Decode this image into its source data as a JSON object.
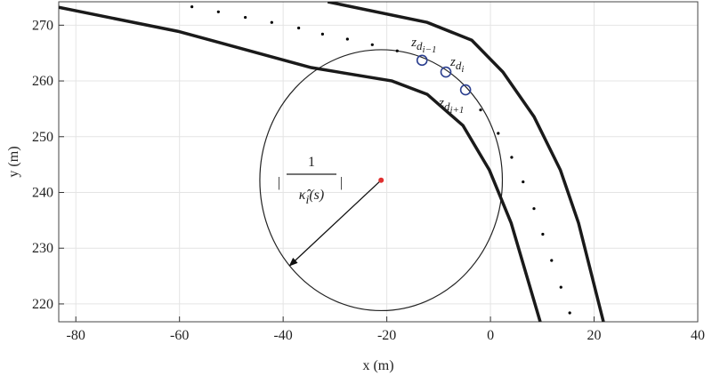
{
  "chart_data": {
    "type": "line",
    "xlabel": "x (m)",
    "ylabel": "y (m)",
    "xlim": [
      -83.3,
      40
    ],
    "ylim": [
      216.8,
      274.2
    ],
    "xticks": [
      -80,
      -60,
      -40,
      -20,
      0,
      20,
      40
    ],
    "yticks": [
      220,
      230,
      240,
      250,
      260,
      270
    ],
    "grid": true,
    "series": [
      {
        "color": "#1a1a1a",
        "style": "solid",
        "x": [
          -83.3,
          -60.3,
          -34.6,
          -19,
          -12.2,
          -5.3,
          -0.2,
          4,
          9.6
        ],
        "values": [
          273.2,
          268.9,
          262.4,
          260,
          257.6,
          252,
          244,
          234.5,
          216.8
        ]
      },
      {
        "color": "#1a1a1a",
        "style": "solid",
        "x": [
          -31.4,
          -12.2,
          -3.6,
          2.4,
          8.4,
          13.5,
          17,
          21.8
        ],
        "values": [
          274.2,
          270.5,
          267.3,
          261.6,
          253.6,
          244,
          234.5,
          216.8
        ]
      },
      {
        "color": "#000000",
        "style": "dots",
        "x": [
          -57.6,
          -52.5,
          -47.3,
          -42.2,
          -37.0,
          -32.4,
          -27.6,
          -22.8,
          -18.0,
          -1.9,
          1.5,
          4.1,
          6.3,
          8.4,
          10.1,
          11.8,
          13.6,
          15.3
        ],
        "values": [
          273.3,
          272.4,
          271.4,
          270.5,
          269.5,
          268.4,
          267.5,
          266.5,
          265.4,
          254.8,
          250.6,
          246.3,
          241.9,
          237.1,
          232.5,
          227.8,
          223.0,
          218.4
        ]
      },
      {
        "color": "#2b3f8f",
        "style": "rings",
        "x": [
          -13.2,
          -8.6,
          -4.8
        ],
        "values": [
          263.7,
          261.6,
          258.4
        ]
      }
    ],
    "circle": {
      "x": -21.1,
      "y": 242.2,
      "radius": 23.4,
      "center_color": "#e03030"
    },
    "annotations": [
      {
        "base": "z",
        "sub": "d",
        "subsub": "i−1"
      },
      {
        "base": "z",
        "sub": "d",
        "subsub": "i"
      },
      {
        "base": "z",
        "sub": "d",
        "subsub": "i+1"
      }
    ],
    "formula": {
      "bar": "|",
      "numerator": "1",
      "denominator": "κ̂",
      "sub": "i",
      "arg": "(s)"
    }
  }
}
